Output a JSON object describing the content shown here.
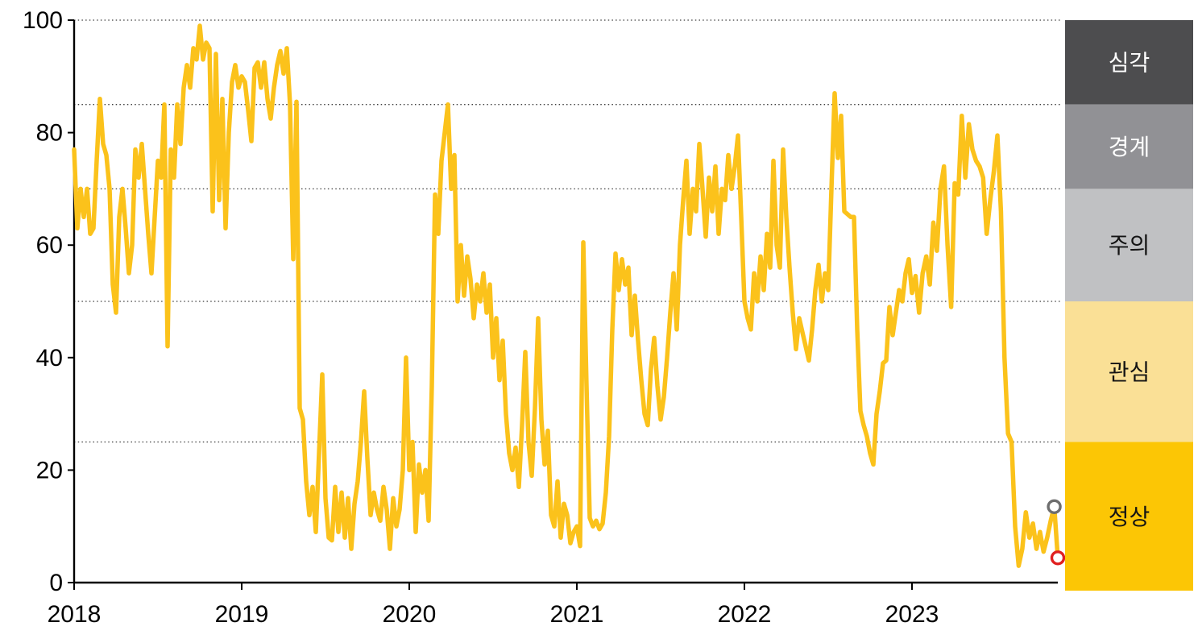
{
  "chart_data": {
    "type": "line",
    "title": "",
    "xlabel": "",
    "ylabel": "",
    "ylim": [
      0,
      100
    ],
    "grid": "dotted horizontal gridlines at band thresholds",
    "gridlines_y": [
      100,
      85,
      70,
      50,
      25
    ],
    "y_axis": {
      "tick_values": [
        0,
        20,
        40,
        60,
        80,
        100
      ],
      "tick_labels": [
        "0",
        "20",
        "40",
        "60",
        "80",
        "100"
      ]
    },
    "x_axis": {
      "tick_labels": [
        "2018",
        "2019",
        "2020",
        "2021",
        "2022",
        "2023"
      ],
      "points_per_year": 52
    },
    "series": [
      {
        "name": "sentiment-index-weekly",
        "color": "#FBC21B",
        "values": [
          77,
          63,
          70,
          65,
          70,
          62,
          63,
          75,
          86,
          78,
          76,
          70,
          53,
          48,
          65,
          70,
          63,
          55,
          60,
          77,
          72,
          78,
          70,
          62,
          55,
          65,
          75,
          72,
          85,
          42,
          77,
          72,
          85,
          78,
          88,
          92,
          88,
          95,
          93,
          99,
          93,
          96,
          95,
          66,
          94,
          68,
          86,
          63,
          80,
          89,
          92,
          88,
          90,
          89,
          84,
          78.5,
          91.5,
          92.5,
          88,
          92.5,
          86,
          82.5,
          88,
          92,
          94.5,
          90.5,
          95,
          85,
          57.5,
          85.5,
          31,
          29,
          18,
          12,
          17,
          9,
          23,
          37,
          15,
          8,
          7.5,
          17,
          9,
          16,
          8,
          15,
          6,
          14,
          18,
          25,
          34,
          22,
          12,
          16,
          13,
          11,
          17,
          13,
          6,
          15,
          10,
          13,
          20,
          40,
          20,
          25,
          9,
          21,
          16,
          20,
          11,
          35,
          69,
          62,
          75,
          80,
          85,
          70,
          76,
          50,
          60,
          51,
          58,
          54,
          47,
          53,
          50,
          55,
          48,
          53,
          40,
          47,
          36,
          43,
          30,
          23,
          20,
          24,
          17,
          28,
          41,
          25,
          19,
          31,
          47,
          29,
          21,
          27,
          12,
          10,
          18,
          8,
          14,
          12,
          7,
          9,
          10,
          6.5,
          60.5,
          35,
          11.5,
          10,
          11,
          9.5,
          10.5,
          16,
          26,
          45,
          58.5,
          52,
          57.5,
          53,
          56,
          44,
          51,
          43,
          36,
          30,
          28,
          38,
          43.5,
          35,
          29,
          33,
          40,
          48,
          55,
          45,
          60,
          68,
          75,
          62,
          70,
          66,
          78,
          70,
          61.5,
          72,
          66,
          74,
          62,
          70,
          68,
          76,
          70,
          74,
          79.5,
          65,
          50,
          47,
          45,
          55,
          50,
          58,
          52,
          62,
          56,
          75,
          60,
          56,
          77,
          65,
          56,
          48,
          41.5,
          47,
          44.5,
          42,
          39.5,
          45,
          52,
          56.5,
          50,
          55,
          52,
          70,
          87,
          75.5,
          83,
          66,
          65.5,
          65,
          65,
          45,
          30.5,
          28,
          26,
          23,
          21,
          30,
          34,
          39,
          39.5,
          49,
          44,
          48,
          52,
          50,
          55,
          57.5,
          51.5,
          54.5,
          48,
          55,
          58,
          53,
          64,
          59,
          70,
          74,
          60,
          49,
          71,
          69,
          83,
          72,
          81.5,
          77,
          75,
          74,
          72,
          62,
          68,
          73,
          79.5,
          66,
          40,
          26.5,
          25,
          10,
          3,
          6,
          12.5,
          8,
          10.5,
          6,
          9,
          5.5,
          8,
          11,
          13.5,
          4.4
        ]
      }
    ],
    "end_markers": [
      {
        "name": "previous-point-marker",
        "ring_color": "#6E6E6E",
        "points_from_end": 2,
        "value": 13.5
      },
      {
        "name": "latest-point-marker",
        "ring_color": "#E02020",
        "points_from_end": 1,
        "value": 4.4
      }
    ],
    "legend_bands": [
      {
        "label": "심각",
        "from": 85,
        "to": 100,
        "bg": "#4D4D4F",
        "text_color": "#FFFFFF"
      },
      {
        "label": "경계",
        "from": 70,
        "to": 85,
        "bg": "#919195",
        "text_color": "#FFFFFF"
      },
      {
        "label": "주의",
        "from": 50,
        "to": 70,
        "bg": "#C0C1C3",
        "text_color": "#141414"
      },
      {
        "label": "관심",
        "from": 25,
        "to": 50,
        "bg": "#FAE096",
        "text_color": "#141414"
      },
      {
        "label": "정상",
        "from": 0,
        "to": 25,
        "bg": "#FCC605",
        "text_color": "#141414"
      }
    ],
    "colors": {
      "line": "#FBC21B",
      "axis": "#000000",
      "gridline": "#3C3C3C"
    }
  }
}
